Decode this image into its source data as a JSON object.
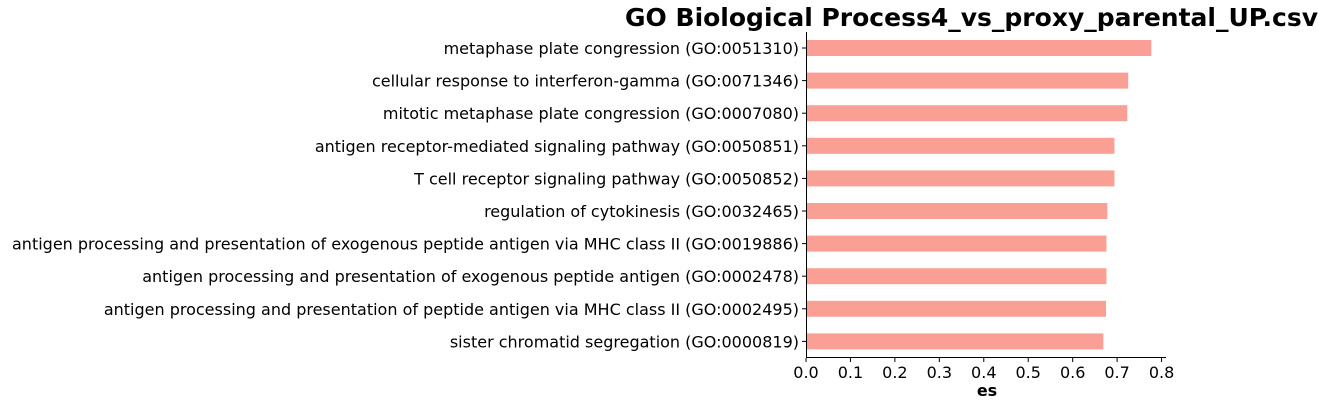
{
  "chart_data": {
    "type": "bar",
    "orientation": "horizontal",
    "title": "GO Biological Process4_vs_proxy_parental_UP.csv",
    "xlabel": "es",
    "ylabel": "",
    "xlim": [
      0,
      0.81
    ],
    "xticks": [
      "0.0",
      "0.1",
      "0.2",
      "0.3",
      "0.4",
      "0.5",
      "0.6",
      "0.7",
      "0.8"
    ],
    "grid": false,
    "legend": "none",
    "bar_color": "#fa9f94",
    "categories": [
      "metaphase plate congression (GO:0051310)",
      "cellular response to interferon-gamma (GO:0071346)",
      "mitotic metaphase plate congression (GO:0007080)",
      "antigen receptor-mediated signaling pathway (GO:0050851)",
      "T cell receptor signaling pathway (GO:0050852)",
      "regulation of cytokinesis (GO:0032465)",
      "antigen processing and presentation of exogenous peptide antigen via MHC class II (GO:0019886)",
      "antigen processing and presentation of exogenous peptide antigen (GO:0002478)",
      "antigen processing and presentation of peptide antigen via MHC class II (GO:0002495)",
      "sister chromatid segregation (GO:0000819)"
    ],
    "values": [
      0.777,
      0.725,
      0.723,
      0.694,
      0.694,
      0.678,
      0.676,
      0.676,
      0.675,
      0.669
    ]
  }
}
